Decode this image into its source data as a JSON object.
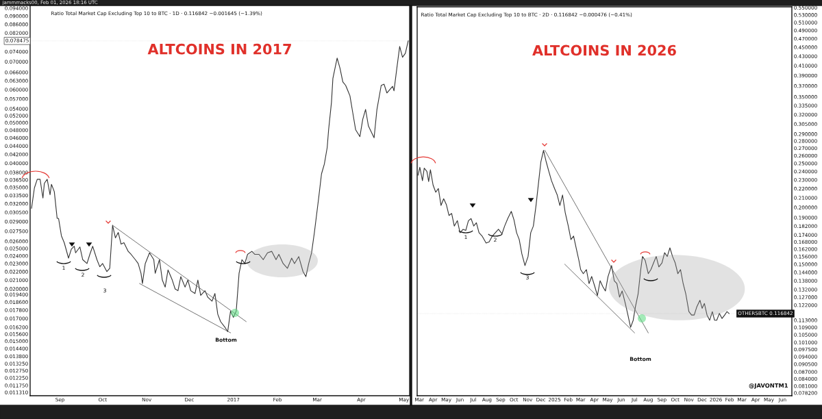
{
  "chart_data": [
    {
      "type": "line",
      "title": "ALTCOINS IN 2017",
      "subtitle": "Ratio Total Market Cap Excluding Top 10 to BTC · 1D · 0.116842 −0.001645 (−1.39%)",
      "log": true,
      "grid": false,
      "legend": false,
      "marker": "none",
      "line_style": "solid",
      "xlim": [
        "2016-08-11",
        "2017-05-05"
      ],
      "xticks": [
        {
          "value": "2016-09-01",
          "label": "Sep"
        },
        {
          "value": "2016-10-01",
          "label": "Oct"
        },
        {
          "value": "2016-11-01",
          "label": "Nov"
        },
        {
          "value": "2016-12-01",
          "label": "Dec"
        },
        {
          "value": "2017-01-01",
          "label": "2017"
        },
        {
          "value": "2017-02-01",
          "label": "Feb"
        },
        {
          "value": "2017-03-01",
          "label": "Mar"
        },
        {
          "value": "2017-04-01",
          "label": "Apr"
        },
        {
          "value": "2017-05-01",
          "label": "May"
        }
      ],
      "ylim": [
        0.0111,
        0.0954
      ],
      "yticks": [
        {
          "value": 0.094,
          "label": "0.094000"
        },
        {
          "value": 0.09,
          "label": "0.090000"
        },
        {
          "value": 0.086,
          "label": "0.086000"
        },
        {
          "value": 0.082,
          "label": "0.082000"
        },
        {
          "value": 0.074,
          "label": "0.074000"
        },
        {
          "value": 0.07,
          "label": "0.070000"
        },
        {
          "value": 0.066,
          "label": "0.066000"
        },
        {
          "value": 0.063,
          "label": "0.063000"
        },
        {
          "value": 0.06,
          "label": "0.060000"
        },
        {
          "value": 0.057,
          "label": "0.057000"
        },
        {
          "value": 0.054,
          "label": "0.054000"
        },
        {
          "value": 0.052,
          "label": "0.052000"
        },
        {
          "value": 0.05,
          "label": "0.050000"
        },
        {
          "value": 0.048,
          "label": "0.048000"
        },
        {
          "value": 0.046,
          "label": "0.046000"
        },
        {
          "value": 0.044,
          "label": "0.044000"
        },
        {
          "value": 0.042,
          "label": "0.042000"
        },
        {
          "value": 0.04,
          "label": "0.040000"
        },
        {
          "value": 0.038,
          "label": "0.038000"
        },
        {
          "value": 0.0365,
          "label": "0.036500"
        },
        {
          "value": 0.035,
          "label": "0.035000"
        },
        {
          "value": 0.0335,
          "label": "0.033500"
        },
        {
          "value": 0.032,
          "label": "0.032000"
        },
        {
          "value": 0.0305,
          "label": "0.030500"
        },
        {
          "value": 0.029,
          "label": "0.029000"
        },
        {
          "value": 0.0275,
          "label": "0.027500"
        },
        {
          "value": 0.026,
          "label": "0.026000"
        },
        {
          "value": 0.025,
          "label": "0.025000"
        },
        {
          "value": 0.024,
          "label": "0.024000"
        },
        {
          "value": 0.023,
          "label": "0.023000"
        },
        {
          "value": 0.022,
          "label": "0.022000"
        },
        {
          "value": 0.021,
          "label": "0.021000"
        },
        {
          "value": 0.02,
          "label": "0.020000"
        },
        {
          "value": 0.0194,
          "label": "0.019400"
        },
        {
          "value": 0.0186,
          "label": "0.018600"
        },
        {
          "value": 0.0178,
          "label": "0.017800"
        },
        {
          "value": 0.017,
          "label": "0.017000"
        },
        {
          "value": 0.0162,
          "label": "0.016200"
        },
        {
          "value": 0.0156,
          "label": "0.015600"
        },
        {
          "value": 0.015,
          "label": "0.015000"
        },
        {
          "value": 0.0144,
          "label": "0.014400"
        },
        {
          "value": 0.0138,
          "label": "0.013800"
        },
        {
          "value": 0.01325,
          "label": "0.013250"
        },
        {
          "value": 0.01275,
          "label": "0.012750"
        },
        {
          "value": 0.01225,
          "label": "0.012250"
        },
        {
          "value": 0.01175,
          "label": "0.011750"
        },
        {
          "value": 0.01131,
          "label": "0.011310"
        }
      ],
      "ref_lines": [
        {
          "axis": "y",
          "value": 0.078475,
          "label": "0.078475"
        }
      ],
      "annotations": [
        "jammmacks00, Feb 01, 2026 18:16 UTC",
        "1",
        "2",
        "3",
        "Bottom"
      ],
      "series": [
        {
          "color": "#333333",
          "x": [
            "2016-08-12",
            "2016-08-14",
            "2016-08-16",
            "2016-08-18",
            "2016-08-20",
            "2016-08-21",
            "2016-08-23",
            "2016-08-25",
            "2016-08-26",
            "2016-08-28",
            "2016-08-30",
            "2016-08-31",
            "2016-09-02",
            "2016-09-04",
            "2016-09-07",
            "2016-09-09",
            "2016-09-11",
            "2016-09-12",
            "2016-09-15",
            "2016-09-17",
            "2016-09-20",
            "2016-09-22",
            "2016-09-24",
            "2016-09-27",
            "2016-09-29",
            "2016-10-01",
            "2016-10-04",
            "2016-10-06",
            "2016-10-08",
            "2016-10-10",
            "2016-10-12",
            "2016-10-14",
            "2016-10-16",
            "2016-10-19",
            "2016-10-21",
            "2016-10-24",
            "2016-10-26",
            "2016-10-28",
            "2016-10-29",
            "2016-10-31",
            "2016-11-03",
            "2016-11-06",
            "2016-11-07",
            "2016-11-10",
            "2016-11-12",
            "2016-11-14",
            "2016-11-16",
            "2016-11-19",
            "2016-11-21",
            "2016-11-23",
            "2016-11-25",
            "2016-11-28",
            "2016-11-30",
            "2016-12-02",
            "2016-12-05",
            "2016-12-07",
            "2016-12-09",
            "2016-12-12",
            "2016-12-14",
            "2016-12-17",
            "2016-12-19",
            "2016-12-21",
            "2016-12-23",
            "2016-12-26",
            "2016-12-28",
            "2016-12-30",
            "2017-01-01",
            "2017-01-03",
            "2017-01-05",
            "2017-01-07",
            "2017-01-09",
            "2017-01-11",
            "2017-01-14",
            "2017-01-16",
            "2017-01-19",
            "2017-01-22",
            "2017-01-25",
            "2017-01-28",
            "2017-01-31",
            "2017-02-02",
            "2017-02-05",
            "2017-02-08",
            "2017-02-11",
            "2017-02-13",
            "2017-02-16",
            "2017-02-19",
            "2017-02-21",
            "2017-02-23",
            "2017-02-25",
            "2017-02-27",
            "2017-03-02",
            "2017-03-04",
            "2017-03-06",
            "2017-03-08",
            "2017-03-09",
            "2017-03-11",
            "2017-03-12",
            "2017-03-14",
            "2017-03-15",
            "2017-03-17",
            "2017-03-19",
            "2017-03-21",
            "2017-03-24",
            "2017-03-26",
            "2017-03-28",
            "2017-03-31",
            "2017-04-02",
            "2017-04-04",
            "2017-04-06",
            "2017-04-10",
            "2017-04-12",
            "2017-04-15",
            "2017-04-17",
            "2017-04-19",
            "2017-04-23",
            "2017-04-24",
            "2017-04-26",
            "2017-04-28",
            "2017-04-30",
            "2017-05-02",
            "2017-05-04"
          ],
          "values": [
            0.0312,
            0.0349,
            0.0366,
            0.0366,
            0.033,
            0.0358,
            0.0366,
            0.0336,
            0.0356,
            0.0342,
            0.0295,
            0.0295,
            0.0268,
            0.0258,
            0.0237,
            0.0249,
            0.0253,
            0.0244,
            0.0252,
            0.0235,
            0.023,
            0.0242,
            0.0253,
            0.0235,
            0.0226,
            0.023,
            0.022,
            0.0224,
            0.0284,
            0.0265,
            0.0273,
            0.0256,
            0.0258,
            0.0246,
            0.0242,
            0.0235,
            0.023,
            0.0218,
            0.0206,
            0.023,
            0.0244,
            0.0235,
            0.0218,
            0.0235,
            0.021,
            0.0202,
            0.0222,
            0.021,
            0.02,
            0.0198,
            0.0214,
            0.0202,
            0.021,
            0.0198,
            0.0195,
            0.021,
            0.0193,
            0.0198,
            0.0191,
            0.0187,
            0.0195,
            0.0174,
            0.0167,
            0.0162,
            0.0158,
            0.0177,
            0.0171,
            0.0177,
            0.0218,
            0.0235,
            0.023,
            0.0242,
            0.0246,
            0.0242,
            0.0242,
            0.0235,
            0.0244,
            0.0246,
            0.0235,
            0.0242,
            0.023,
            0.0224,
            0.0237,
            0.023,
            0.0239,
            0.022,
            0.0214,
            0.023,
            0.0244,
            0.0273,
            0.033,
            0.0377,
            0.0398,
            0.0436,
            0.0481,
            0.0559,
            0.0638,
            0.0688,
            0.0714,
            0.0675,
            0.0626,
            0.0614,
            0.058,
            0.0528,
            0.0481,
            0.0463,
            0.0509,
            0.0538,
            0.0491,
            0.046,
            0.0538,
            0.0614,
            0.0618,
            0.0589,
            0.0611,
            0.0596,
            0.0675,
            0.0761,
            0.0717,
            0.0733,
            0.0785
          ]
        },
        {
          "type": "line",
          "color": "#555555",
          "x": [
            "2016-10-08",
            "2017-01-10"
          ],
          "values": [
            0.0284,
            0.0167
          ]
        },
        {
          "type": "line",
          "color": "#555555",
          "x": [
            "2016-10-27",
            "2016-12-30"
          ],
          "values": [
            0.0206,
            0.0157
          ]
        }
      ]
    },
    {
      "type": "line",
      "title": "ALTCOINS IN 2026",
      "subtitle": "Ratio Total Market Cap Excluding Top 10 to BTC · 2D · 0.116842 −0.000476 (−0.41%)",
      "log": true,
      "grid": false,
      "legend": false,
      "marker": "none",
      "line_style": "solid",
      "xlim": [
        "2024-02-25",
        "2026-06-22"
      ],
      "xticks": [
        {
          "value": "2024-03-01",
          "label": "Mar"
        },
        {
          "value": "2024-04-01",
          "label": "Apr"
        },
        {
          "value": "2024-05-01",
          "label": "May"
        },
        {
          "value": "2024-06-01",
          "label": "Jun"
        },
        {
          "value": "2024-07-01",
          "label": "Jul"
        },
        {
          "value": "2024-08-01",
          "label": "Aug"
        },
        {
          "value": "2024-09-01",
          "label": "Sep"
        },
        {
          "value": "2024-10-01",
          "label": "Oct"
        },
        {
          "value": "2024-11-01",
          "label": "Nov"
        },
        {
          "value": "2024-12-01",
          "label": "Dec"
        },
        {
          "value": "2025-01-01",
          "label": "2025"
        },
        {
          "value": "2025-02-01",
          "label": "Feb"
        },
        {
          "value": "2025-03-01",
          "label": "Mar"
        },
        {
          "value": "2025-04-01",
          "label": "Apr"
        },
        {
          "value": "2025-05-01",
          "label": "May"
        },
        {
          "value": "2025-06-01",
          "label": "Jun"
        },
        {
          "value": "2025-07-01",
          "label": "Jul"
        },
        {
          "value": "2025-08-01",
          "label": "Aug"
        },
        {
          "value": "2025-09-01",
          "label": "Sep"
        },
        {
          "value": "2025-10-01",
          "label": "Oct"
        },
        {
          "value": "2025-11-01",
          "label": "Nov"
        },
        {
          "value": "2025-12-01",
          "label": "Dec"
        },
        {
          "value": "2026-01-01",
          "label": "2026"
        },
        {
          "value": "2026-02-01",
          "label": "Feb"
        },
        {
          "value": "2026-03-01",
          "label": "Mar"
        },
        {
          "value": "2026-04-01",
          "label": "Apr"
        },
        {
          "value": "2026-05-01",
          "label": "May"
        },
        {
          "value": "2026-06-01",
          "label": "Jun"
        }
      ],
      "ylim": [
        0.0771,
        0.552
      ],
      "yticks": [
        {
          "value": 0.55,
          "label": "0.550000"
        },
        {
          "value": 0.53,
          "label": "0.530000"
        },
        {
          "value": 0.51,
          "label": "0.510000"
        },
        {
          "value": 0.49,
          "label": "0.490000"
        },
        {
          "value": 0.47,
          "label": "0.470000"
        },
        {
          "value": 0.45,
          "label": "0.450000"
        },
        {
          "value": 0.43,
          "label": "0.430000"
        },
        {
          "value": 0.41,
          "label": "0.410000"
        },
        {
          "value": 0.39,
          "label": "0.390000"
        },
        {
          "value": 0.37,
          "label": "0.370000"
        },
        {
          "value": 0.35,
          "label": "0.350000"
        },
        {
          "value": 0.335,
          "label": "0.335000"
        },
        {
          "value": 0.32,
          "label": "0.320000"
        },
        {
          "value": 0.305,
          "label": "0.305000"
        },
        {
          "value": 0.29,
          "label": "0.290000"
        },
        {
          "value": 0.28,
          "label": "0.280000"
        },
        {
          "value": 0.27,
          "label": "0.270000"
        },
        {
          "value": 0.26,
          "label": "0.260000"
        },
        {
          "value": 0.25,
          "label": "0.250000"
        },
        {
          "value": 0.24,
          "label": "0.240000"
        },
        {
          "value": 0.23,
          "label": "0.230000"
        },
        {
          "value": 0.22,
          "label": "0.220000"
        },
        {
          "value": 0.21,
          "label": "0.210000"
        },
        {
          "value": 0.2,
          "label": "0.200000"
        },
        {
          "value": 0.19,
          "label": "0.190000"
        },
        {
          "value": 0.182,
          "label": "0.182000"
        },
        {
          "value": 0.174,
          "label": "0.174000"
        },
        {
          "value": 0.168,
          "label": "0.168000"
        },
        {
          "value": 0.162,
          "label": "0.162000"
        },
        {
          "value": 0.156,
          "label": "0.156000"
        },
        {
          "value": 0.15,
          "label": "0.150000"
        },
        {
          "value": 0.144,
          "label": "0.144000"
        },
        {
          "value": 0.138,
          "label": "0.138000"
        },
        {
          "value": 0.132,
          "label": "0.132000"
        },
        {
          "value": 0.127,
          "label": "0.127000"
        },
        {
          "value": 0.122,
          "label": "0.122000"
        },
        {
          "value": 0.113,
          "label": "0.113000"
        },
        {
          "value": 0.109,
          "label": "0.109000"
        },
        {
          "value": 0.105,
          "label": "0.105000"
        },
        {
          "value": 0.101,
          "label": "0.101000"
        },
        {
          "value": 0.0975,
          "label": "0.097500"
        },
        {
          "value": 0.094,
          "label": "0.094000"
        },
        {
          "value": 0.0905,
          "label": "0.090500"
        },
        {
          "value": 0.087,
          "label": "0.087000"
        },
        {
          "value": 0.084,
          "label": "0.084000"
        },
        {
          "value": 0.081,
          "label": "0.081000"
        },
        {
          "value": 0.0782,
          "label": "0.078200"
        }
      ],
      "ref_lines": [
        {
          "axis": "y",
          "value": 0.116842,
          "label": "OTHERSBTC 0.116842"
        }
      ],
      "annotations": [
        "@JAVONTM1",
        "1",
        "2",
        "3",
        "Bottom"
      ],
      "series": [
        {
          "color": "#333333",
          "x": [
            "2024-02-27",
            "2024-03-02",
            "2024-03-08",
            "2024-03-12",
            "2024-03-18",
            "2024-03-22",
            "2024-03-26",
            "2024-04-01",
            "2024-04-07",
            "2024-04-13",
            "2024-04-19",
            "2024-04-25",
            "2024-05-01",
            "2024-05-07",
            "2024-05-13",
            "2024-05-19",
            "2024-05-26",
            "2024-06-01",
            "2024-06-08",
            "2024-06-14",
            "2024-06-20",
            "2024-06-26",
            "2024-07-02",
            "2024-07-08",
            "2024-07-14",
            "2024-07-21",
            "2024-07-30",
            "2024-08-06",
            "2024-08-13",
            "2024-08-20",
            "2024-08-27",
            "2024-09-04",
            "2024-09-10",
            "2024-09-17",
            "2024-09-25",
            "2024-10-01",
            "2024-10-07",
            "2024-10-13",
            "2024-10-19",
            "2024-10-26",
            "2024-11-02",
            "2024-11-08",
            "2024-11-14",
            "2024-11-20",
            "2024-11-26",
            "2024-12-01",
            "2024-12-07",
            "2024-12-13",
            "2024-12-19",
            "2024-12-25",
            "2025-01-01",
            "2025-01-07",
            "2025-01-13",
            "2025-01-19",
            "2025-01-25",
            "2025-02-01",
            "2025-02-07",
            "2025-02-13",
            "2025-02-20",
            "2025-02-25",
            "2025-03-01",
            "2025-03-07",
            "2025-03-14",
            "2025-03-20",
            "2025-03-26",
            "2025-04-02",
            "2025-04-08",
            "2025-04-14",
            "2025-04-20",
            "2025-04-26",
            "2025-05-02",
            "2025-05-10",
            "2025-05-16",
            "2025-05-22",
            "2025-05-28",
            "2025-06-03",
            "2025-06-10",
            "2025-06-16",
            "2025-06-22",
            "2025-06-28",
            "2025-07-03",
            "2025-07-09",
            "2025-07-15",
            "2025-07-19",
            "2025-07-25",
            "2025-08-01",
            "2025-08-07",
            "2025-08-13",
            "2025-08-19",
            "2025-08-25",
            "2025-09-01",
            "2025-09-07",
            "2025-09-13",
            "2025-09-19",
            "2025-09-25",
            "2025-10-01",
            "2025-10-07",
            "2025-10-13",
            "2025-10-19",
            "2025-10-25",
            "2025-11-01",
            "2025-11-07",
            "2025-11-13",
            "2025-11-19",
            "2025-11-26",
            "2025-12-01",
            "2025-12-06",
            "2025-12-12",
            "2025-12-18",
            "2025-12-24",
            "2025-12-29",
            "2026-01-03",
            "2026-01-09",
            "2026-01-15",
            "2026-01-21",
            "2026-01-26",
            "2026-01-31"
          ],
          "values": [
            0.2355,
            0.245,
            0.229,
            0.244,
            0.24,
            0.228,
            0.242,
            0.224,
            0.216,
            0.22,
            0.202,
            0.209,
            0.203,
            0.192,
            0.194,
            0.182,
            0.187,
            0.176,
            0.179,
            0.178,
            0.187,
            0.189,
            0.182,
            0.185,
            0.176,
            0.173,
            0.167,
            0.168,
            0.173,
            0.176,
            0.179,
            0.175,
            0.182,
            0.189,
            0.196,
            0.188,
            0.176,
            0.17,
            0.158,
            0.149,
            0.156,
            0.176,
            0.182,
            0.202,
            0.228,
            0.252,
            0.267,
            0.252,
            0.24,
            0.229,
            0.22,
            0.213,
            0.202,
            0.213,
            0.195,
            0.182,
            0.17,
            0.173,
            0.161,
            0.153,
            0.146,
            0.143,
            0.146,
            0.136,
            0.141,
            0.134,
            0.128,
            0.138,
            0.134,
            0.131,
            0.141,
            0.149,
            0.138,
            0.136,
            0.127,
            0.131,
            0.123,
            0.116,
            0.109,
            0.113,
            0.121,
            0.129,
            0.146,
            0.156,
            0.153,
            0.143,
            0.146,
            0.151,
            0.156,
            0.148,
            0.151,
            0.159,
            0.156,
            0.163,
            0.156,
            0.151,
            0.143,
            0.146,
            0.136,
            0.129,
            0.118,
            0.116,
            0.116,
            0.121,
            0.125,
            0.12,
            0.123,
            0.116,
            0.113,
            0.118,
            0.113,
            0.113,
            0.117,
            0.114,
            0.116,
            0.118,
            0.116842
          ]
        },
        {
          "type": "line",
          "color": "#555555",
          "x": [
            "2024-12-10",
            "2025-08-01"
          ],
          "values": [
            0.267,
            0.106
          ]
        },
        {
          "type": "line",
          "color": "#555555",
          "x": [
            "2025-01-24",
            "2025-07-01"
          ],
          "values": [
            0.15,
            0.106
          ]
        }
      ]
    }
  ]
}
